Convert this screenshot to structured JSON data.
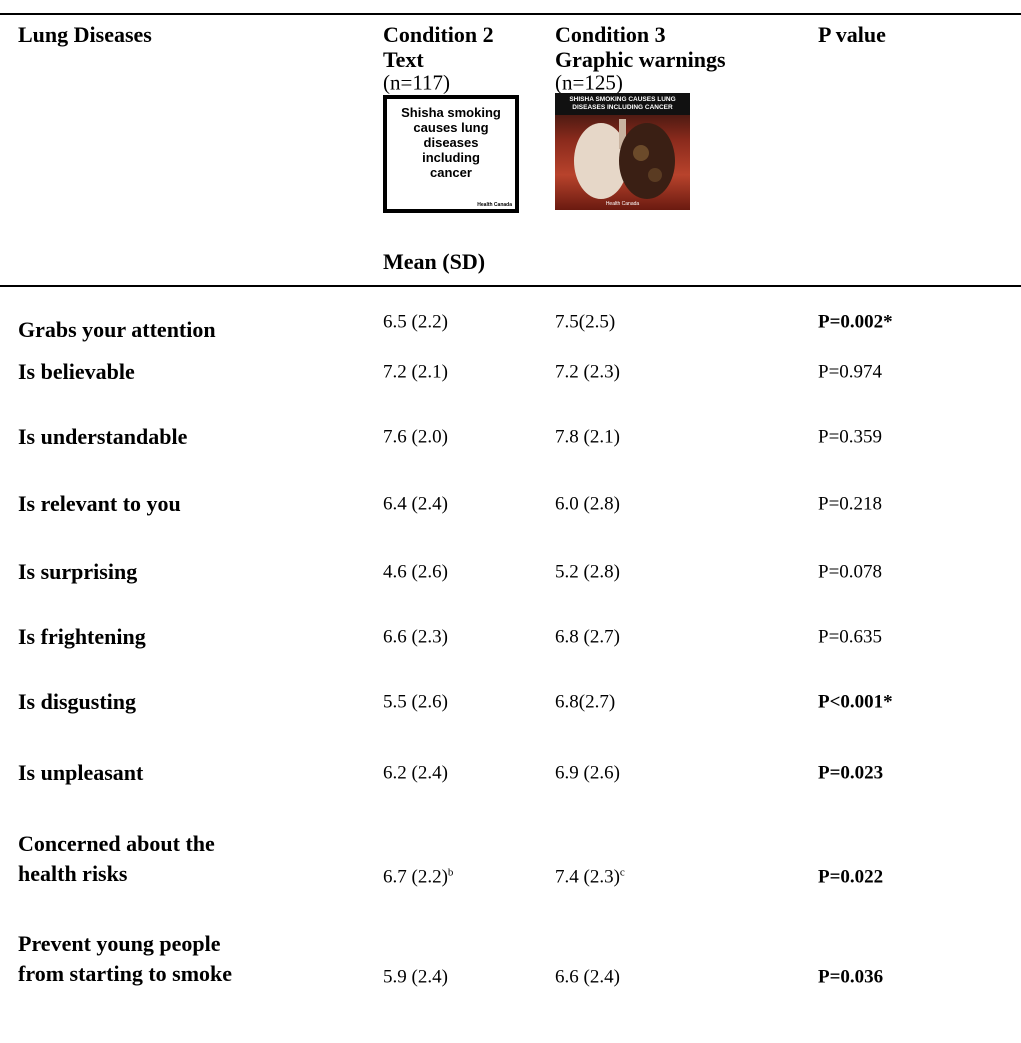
{
  "header": {
    "col1": "Lung Diseases",
    "col2": {
      "title": "Condition 2",
      "subtitle": "Text",
      "n": "(n=117)",
      "image": {
        "lines": [
          "Shisha smoking",
          "causes lung",
          "diseases",
          "including",
          "cancer"
        ],
        "credit": "Health Canada"
      }
    },
    "col3": {
      "title": "Condition 3",
      "subtitle": "Graphic warnings",
      "n": "(n=125)",
      "image": {
        "lines": [
          "SHISHA SMOKING CAUSES LUNG",
          "DISEASES INCLUDING CANCER"
        ],
        "credit": "Health Canada"
      }
    },
    "col4": "P value",
    "measure": "Mean (SD)"
  },
  "rows": [
    {
      "label": [
        "Grabs your attention"
      ],
      "c2": {
        "text": "6.5 (2.2)"
      },
      "c3": {
        "text": "7.5(2.5)"
      },
      "p": {
        "text": "P=0.002*",
        "bold": true
      }
    },
    {
      "label": [
        "Is believable"
      ],
      "c2": {
        "text": "7.2 (2.1)"
      },
      "c3": {
        "text": "7.2 (2.3)"
      },
      "p": {
        "text": "P=0.974",
        "bold": false
      }
    },
    {
      "label": [
        "Is understandable"
      ],
      "c2": {
        "text": "7.6 (2.0)"
      },
      "c3": {
        "text": "7.8 (2.1)"
      },
      "p": {
        "text": "P=0.359",
        "bold": false
      }
    },
    {
      "label": [
        "Is relevant to you"
      ],
      "c2": {
        "text": "6.4 (2.4)"
      },
      "c3": {
        "text": "6.0 (2.8)"
      },
      "p": {
        "text": "P=0.218",
        "bold": false
      }
    },
    {
      "label": [
        "Is surprising"
      ],
      "c2": {
        "text": "4.6 (2.6)"
      },
      "c3": {
        "text": "5.2 (2.8)"
      },
      "p": {
        "text": "P=0.078",
        "bold": false
      }
    },
    {
      "label": [
        "Is frightening"
      ],
      "c2": {
        "text": "6.6 (2.3)"
      },
      "c3": {
        "text": "6.8 (2.7)"
      },
      "p": {
        "text": "P=0.635",
        "bold": false
      }
    },
    {
      "label": [
        "Is disgusting"
      ],
      "c2": {
        "text": "5.5 (2.6)"
      },
      "c3": {
        "text": "6.8(2.7)"
      },
      "p": {
        "text": "P<0.001*",
        "bold": true
      }
    },
    {
      "label": [
        "Is unpleasant"
      ],
      "c2": {
        "text": "6.2 (2.4)"
      },
      "c3": {
        "text": "6.9 (2.6)"
      },
      "p": {
        "text": "P=0.023",
        "bold": true
      }
    },
    {
      "label": [
        "Concerned about the",
        "health risks"
      ],
      "c2": {
        "text": "6.7 (2.2)",
        "sup": "b"
      },
      "c3": {
        "text": "7.4 (2.3)",
        "sup": "c"
      },
      "p": {
        "text": "P=0.022",
        "bold": true
      }
    },
    {
      "label": [
        "Prevent young people",
        "from starting to smoke"
      ],
      "c2": {
        "text": "5.9 (2.4)"
      },
      "c3": {
        "text": "6.6 (2.4)"
      },
      "p": {
        "text": "P=0.036",
        "bold": true
      }
    }
  ]
}
